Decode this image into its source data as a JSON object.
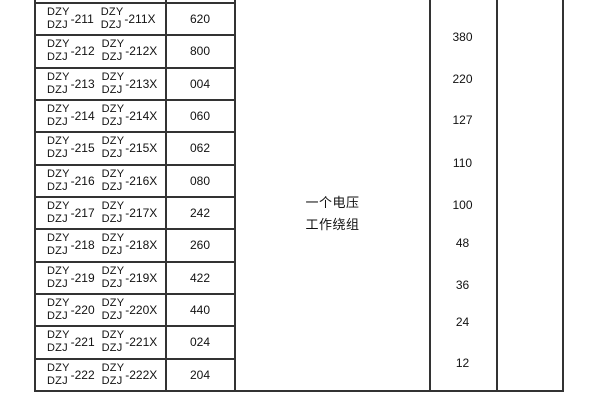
{
  "colors": {
    "border": "#333333",
    "text": "#111111",
    "background": "#ffffff"
  },
  "table": {
    "model_prefix_top": "DZY",
    "model_prefix_bottom": "DZJ",
    "rows": [
      {
        "suffix": "-211",
        "suffix_variant": "-211X",
        "code": "620"
      },
      {
        "suffix": "-212",
        "suffix_variant": "-212X",
        "code": "800"
      },
      {
        "suffix": "-213",
        "suffix_variant": "-213X",
        "code": "004"
      },
      {
        "suffix": "-214",
        "suffix_variant": "-214X",
        "code": "060"
      },
      {
        "suffix": "-215",
        "suffix_variant": "-215X",
        "code": "062"
      },
      {
        "suffix": "-216",
        "suffix_variant": "-216X",
        "code": "080"
      },
      {
        "suffix": "-217",
        "suffix_variant": "-217X",
        "code": "242"
      },
      {
        "suffix": "-218",
        "suffix_variant": "-218X",
        "code": "260"
      },
      {
        "suffix": "-219",
        "suffix_variant": "-219X",
        "code": "422"
      },
      {
        "suffix": "-220",
        "suffix_variant": "-220X",
        "code": "440"
      },
      {
        "suffix": "-221",
        "suffix_variant": "-221X",
        "code": "024"
      },
      {
        "suffix": "-222",
        "suffix_variant": "-222X",
        "code": "204"
      }
    ],
    "winding_label": {
      "line1": "一个电压",
      "line2": "工作绕组"
    },
    "voltages": [
      "380",
      "220",
      "127",
      "110",
      "100",
      "48",
      "36",
      "24",
      "12"
    ]
  }
}
